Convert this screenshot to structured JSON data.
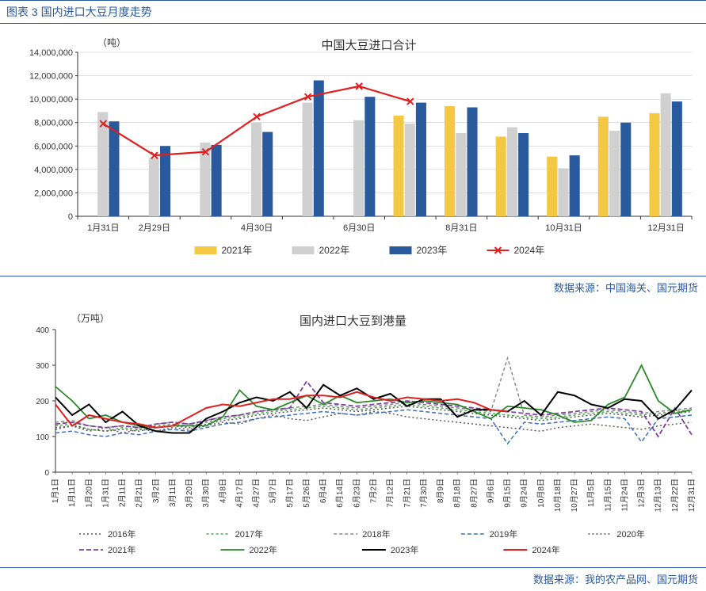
{
  "header": {
    "title": "图表 3  国内进口大豆月度走势"
  },
  "chart1": {
    "type": "bar+line",
    "title": "中国大豆进口合计",
    "title_fontsize": 15,
    "unit_label": "（吨）",
    "unit_fontsize": 12,
    "categories": [
      "1月31日",
      "2月29日",
      "",
      "4月30日",
      "",
      "6月30日",
      "",
      "8月31日",
      "",
      "10月31日",
      "",
      "12月31日"
    ],
    "ylim": [
      0,
      14000000
    ],
    "ytick_step": 2000000,
    "yticks": [
      "0",
      "2,000,000",
      "4,000,000",
      "6,000,000",
      "8,000,000",
      "10,000,000",
      "12,000,000",
      "14,000,000"
    ],
    "series": [
      {
        "name": "2021年",
        "type": "bar",
        "color": "#f4c842",
        "values": [
          null,
          null,
          null,
          null,
          null,
          null,
          8600000,
          9400000,
          6800000,
          5100000,
          8500000,
          8800000
        ]
      },
      {
        "name": "2022年",
        "type": "bar",
        "color": "#d0d0d0",
        "values": [
          8900000,
          5000000,
          6300000,
          8000000,
          9700000,
          8200000,
          7900000,
          7100000,
          7600000,
          4100000,
          7300000,
          10500000
        ]
      },
      {
        "name": "2023年",
        "type": "bar",
        "color": "#2a5a9e",
        "values": [
          8100000,
          6000000,
          6100000,
          7200000,
          11600000,
          10200000,
          9700000,
          9300000,
          7100000,
          5200000,
          8000000,
          9800000
        ]
      },
      {
        "name": "2024年",
        "type": "line",
        "color": "#e02020",
        "marker": "x",
        "values": [
          7900000,
          5200000,
          5500000,
          8500000,
          10200000,
          11100000,
          9800000,
          null,
          null,
          null,
          null,
          null
        ]
      }
    ],
    "bar_width": 0.18,
    "background_color": "#ffffff",
    "grid_color": "#cccccc",
    "axis_color": "#333333",
    "tick_fontsize": 11,
    "legend_position": "bottom"
  },
  "source1": {
    "text": "数据来源：中国海关、国元期货"
  },
  "chart2": {
    "type": "line",
    "title": "国内进口大豆到港量",
    "title_fontsize": 15,
    "unit_label": "（万吨）",
    "unit_fontsize": 12,
    "ylim": [
      0,
      400
    ],
    "ytick_step": 100,
    "yticks": [
      "0",
      "100",
      "200",
      "300",
      "400"
    ],
    "x_labels": [
      "1月1日",
      "1月11日",
      "1月20日",
      "1月31日",
      "2月11日",
      "2月21日",
      "3月2日",
      "3月11日",
      "3月20日",
      "3月30日",
      "4月8日",
      "4月17日",
      "4月27日",
      "5月7日",
      "5月17日",
      "5月26日",
      "6月4日",
      "6月14日",
      "6月23日",
      "7月2日",
      "7月12日",
      "7月21日",
      "7月30日",
      "8月9日",
      "8月18日",
      "8月27日",
      "9月6日",
      "9月15日",
      "9月24日",
      "10月8日",
      "10月18日",
      "10月27日",
      "11月5日",
      "11月15日",
      "11月24日",
      "12月3日",
      "12月13日",
      "12月22日",
      "12月31日"
    ],
    "series": [
      {
        "name": "2016年",
        "color": "#5a5a5a",
        "dash": "2,3",
        "width": 1.5,
        "values": [
          120,
          130,
          115,
          125,
          110,
          120,
          115,
          125,
          120,
          130,
          140,
          135,
          150,
          160,
          150,
          145,
          155,
          165,
          160,
          170,
          165,
          155,
          150,
          145,
          140,
          135,
          130,
          125,
          120,
          115,
          125,
          130,
          135,
          130,
          125,
          120,
          130,
          135,
          140
        ]
      },
      {
        "name": "2017年",
        "color": "#4aa84a",
        "dash": "3,3",
        "width": 1.5,
        "values": [
          130,
          135,
          120,
          115,
          125,
          120,
          130,
          135,
          130,
          140,
          150,
          155,
          165,
          170,
          175,
          180,
          185,
          180,
          175,
          180,
          185,
          190,
          185,
          180,
          175,
          170,
          165,
          160,
          155,
          150,
          155,
          160,
          165,
          170,
          165,
          160,
          165,
          170,
          175
        ]
      },
      {
        "name": "2018年",
        "color": "#888888",
        "dash": "4,3",
        "width": 1.5,
        "values": [
          140,
          145,
          130,
          125,
          130,
          125,
          135,
          140,
          135,
          145,
          155,
          160,
          170,
          175,
          180,
          185,
          190,
          185,
          180,
          185,
          190,
          195,
          190,
          185,
          180,
          175,
          170,
          320,
          160,
          155,
          160,
          165,
          170,
          175,
          170,
          165,
          170,
          175,
          180
        ]
      },
      {
        "name": "2019年",
        "color": "#3a6ebf",
        "dash": "5,3",
        "width": 1.5,
        "values": [
          110,
          115,
          105,
          100,
          110,
          105,
          115,
          120,
          115,
          125,
          135,
          140,
          150,
          155,
          160,
          165,
          170,
          165,
          160,
          165,
          170,
          175,
          170,
          165,
          160,
          155,
          150,
          80,
          140,
          135,
          140,
          145,
          150,
          155,
          150,
          85,
          150,
          155,
          160
        ]
      },
      {
        "name": "2020年",
        "color": "#555555",
        "dash": "2,3",
        "width": 1.5,
        "values": [
          125,
          130,
          120,
          115,
          120,
          115,
          125,
          130,
          125,
          135,
          145,
          150,
          160,
          165,
          170,
          175,
          180,
          175,
          170,
          175,
          180,
          185,
          180,
          175,
          170,
          165,
          160,
          155,
          150,
          145,
          150,
          155,
          160,
          165,
          160,
          155,
          160,
          165,
          170
        ]
      },
      {
        "name": "2021年",
        "color": "#8040a0",
        "dash": "6,3",
        "width": 1.8,
        "values": [
          135,
          140,
          130,
          125,
          130,
          125,
          135,
          140,
          135,
          145,
          155,
          160,
          170,
          175,
          180,
          255,
          195,
          190,
          185,
          190,
          195,
          200,
          195,
          190,
          185,
          180,
          175,
          170,
          165,
          160,
          165,
          170,
          175,
          180,
          175,
          170,
          100,
          180,
          105
        ]
      },
      {
        "name": "2022年",
        "color": "#2a8a2a",
        "dash": "",
        "width": 1.8,
        "values": [
          240,
          200,
          150,
          160,
          140,
          130,
          125,
          130,
          130,
          130,
          155,
          230,
          185,
          175,
          195,
          215,
          190,
          215,
          195,
          200,
          205,
          195,
          200,
          195,
          190,
          170,
          150,
          185,
          180,
          175,
          160,
          140,
          145,
          190,
          210,
          300,
          200,
          165,
          175
        ]
      },
      {
        "name": "2023年",
        "color": "#000000",
        "dash": "",
        "width": 2.0,
        "values": [
          210,
          160,
          190,
          140,
          170,
          130,
          115,
          110,
          110,
          150,
          170,
          195,
          210,
          200,
          225,
          180,
          245,
          215,
          235,
          205,
          220,
          185,
          205,
          205,
          155,
          175,
          175,
          170,
          200,
          160,
          225,
          215,
          190,
          180,
          205,
          200,
          150,
          175,
          230
        ]
      },
      {
        "name": "2024年",
        "color": "#e02020",
        "dash": "",
        "width": 2.0,
        "values": [
          190,
          130,
          160,
          150,
          140,
          135,
          125,
          130,
          155,
          180,
          190,
          185,
          195,
          205,
          205,
          215,
          215,
          210,
          225,
          210,
          200,
          210,
          205,
          200,
          205,
          195,
          175,
          170,
          null,
          null,
          null,
          null,
          null,
          null,
          null,
          null,
          null,
          null,
          null
        ]
      }
    ],
    "background_color": "#ffffff",
    "axis_color": "#333333",
    "tick_fontsize": 10,
    "legend_position": "bottom"
  },
  "source2": {
    "text": "数据来源：我的农产品网、国元期货"
  }
}
